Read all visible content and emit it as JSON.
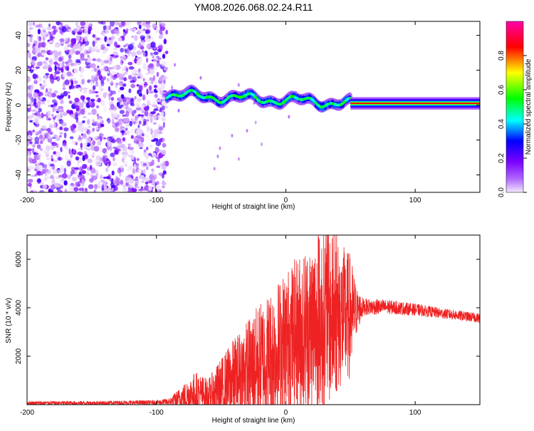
{
  "title": "YM08.2026.068.02.24.R11",
  "chart_data": [
    {
      "type": "heatmap",
      "name": "spectrogram",
      "xlabel": "Height of straight line (km)",
      "ylabel": "Frequency (Hz)",
      "xlim": [
        -200,
        150
      ],
      "ylim": [
        -50,
        48
      ],
      "x_ticks": [
        -200,
        -100,
        0,
        100
      ],
      "x_tick_labels": [
        "-200",
        "-100",
        "0",
        "100"
      ],
      "y_ticks": [
        -40,
        -20,
        0,
        20,
        40
      ],
      "y_tick_labels": [
        "-40",
        "-20",
        "0",
        "20",
        "40"
      ],
      "colorbar": {
        "label": "Normalized spectral amplitude",
        "range": [
          0,
          1
        ],
        "ticks": [
          0.0,
          0.2,
          0.4,
          0.6,
          0.8
        ],
        "tick_labels": [
          "0.0",
          "0.2",
          "0.4",
          "0.6",
          "0.8"
        ],
        "colormap": [
          "#f2e8fa",
          "#7a00ff",
          "#0000ff",
          "#00ffff",
          "#00ff00",
          "#ffff00",
          "#ff0000",
          "#ff00aa"
        ]
      },
      "regions": [
        {
          "desc": "noise",
          "x": [
            -200,
            -92
          ],
          "freq": [
            -50,
            48
          ],
          "amplitude": [
            0.0,
            0.25
          ]
        },
        {
          "desc": "noisy line",
          "x": [
            -92,
            50
          ],
          "freq_center": [
            6,
            1
          ],
          "amplitude": [
            0.2,
            0.55
          ]
        },
        {
          "desc": "clean line",
          "x": [
            50,
            150
          ],
          "freq_center": [
            1,
            1
          ],
          "amplitude": [
            0.9,
            1.0
          ]
        }
      ]
    },
    {
      "type": "line",
      "name": "snr",
      "xlabel": "Height of straight line (km)",
      "ylabel": "SNR (10 * v/v)",
      "xlim": [
        -200,
        150
      ],
      "ylim": [
        0,
        7000
      ],
      "x_ticks": [
        -200,
        -100,
        0,
        100
      ],
      "x_tick_labels": [
        "-200",
        "-100",
        "0",
        "100"
      ],
      "y_ticks": [
        2000,
        4000,
        6000
      ],
      "y_tick_labels": [
        "2000",
        "4000",
        "6000"
      ],
      "line_color": "#ee2222",
      "envelope": {
        "x": [
          -200,
          -150,
          -100,
          -90,
          -80,
          -70,
          -60,
          -50,
          -40,
          -30,
          -20,
          -10,
          0,
          10,
          20,
          30,
          40,
          50,
          55,
          60,
          80,
          100,
          120,
          150
        ],
        "base": [
          60,
          60,
          80,
          100,
          250,
          400,
          300,
          500,
          900,
          1200,
          1500,
          1800,
          2300,
          2600,
          2900,
          3100,
          3300,
          3400,
          3800,
          4000,
          4000,
          3900,
          3750,
          3550
        ],
        "amp": [
          80,
          80,
          100,
          150,
          500,
          900,
          700,
          1300,
          1700,
          2100,
          2500,
          2800,
          3000,
          3300,
          3600,
          3800,
          3200,
          2600,
          900,
          350,
          300,
          250,
          220,
          200
        ]
      },
      "peak_value": 7000
    }
  ]
}
